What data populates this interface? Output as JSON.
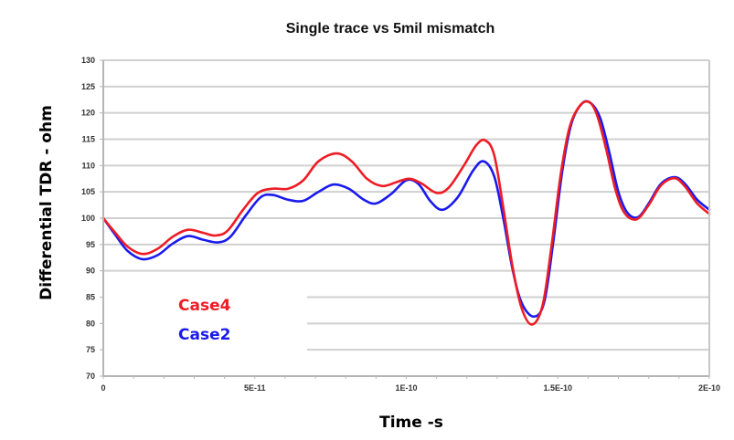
{
  "chart_data": {
    "type": "line",
    "title": "Single trace vs 5mil mismatch",
    "xlabel": "Time -s",
    "ylabel": "Differential TDR - ohm",
    "xlim": [
      0,
      2e-10
    ],
    "ylim": [
      70,
      130
    ],
    "grid": true,
    "legend_placement": "bottom-left",
    "x_ticks": [
      {
        "value": 0,
        "label": "0"
      },
      {
        "value": 5e-11,
        "label": "5E-11"
      },
      {
        "value": 1e-10,
        "label": "1E-10"
      },
      {
        "value": 1.5e-10,
        "label": "1.5E-10"
      },
      {
        "value": 2e-10,
        "label": "2E-10"
      }
    ],
    "x_minor_step": 1e-11,
    "y_ticks": [
      70,
      75,
      80,
      85,
      90,
      95,
      100,
      105,
      110,
      115,
      120,
      125,
      130
    ],
    "series": [
      {
        "name": "Case4",
        "color": "#ee1c24",
        "points": [
          [
            0,
            100
          ],
          [
            4e-12,
            97.2
          ],
          [
            8e-12,
            94.6
          ],
          [
            1.3e-11,
            93.2
          ],
          [
            1.8e-11,
            94.2
          ],
          [
            2.3e-11,
            96.5
          ],
          [
            2.8e-11,
            97.8
          ],
          [
            3.3e-11,
            97.2
          ],
          [
            3.7e-11,
            96.7
          ],
          [
            4.1e-11,
            97.6
          ],
          [
            4.6e-11,
            101.5
          ],
          [
            5.1e-11,
            104.8
          ],
          [
            5.6e-11,
            105.6
          ],
          [
            6.1e-11,
            105.6
          ],
          [
            6.6e-11,
            107.2
          ],
          [
            7.1e-11,
            110.8
          ],
          [
            7.7e-11,
            112.3
          ],
          [
            8.2e-11,
            110.8
          ],
          [
            8.7e-11,
            107.5
          ],
          [
            9.2e-11,
            106.1
          ],
          [
            9.7e-11,
            106.9
          ],
          [
            1.01e-10,
            107.5
          ],
          [
            1.05e-10,
            106.6
          ],
          [
            1.1e-10,
            104.8
          ],
          [
            1.14e-10,
            105.8
          ],
          [
            1.19e-10,
            110.0
          ],
          [
            1.23e-10,
            113.8
          ],
          [
            1.26e-10,
            114.8
          ],
          [
            1.29e-10,
            112.0
          ],
          [
            1.32e-10,
            102.0
          ],
          [
            1.35e-10,
            91.0
          ],
          [
            1.38e-10,
            83.0
          ],
          [
            1.415e-10,
            79.8
          ],
          [
            1.45e-10,
            83.5
          ],
          [
            1.48e-10,
            95.0
          ],
          [
            1.51e-10,
            108.5
          ],
          [
            1.54e-10,
            117.5
          ],
          [
            1.575e-10,
            121.5
          ],
          [
            1.605e-10,
            122.0
          ],
          [
            1.63e-10,
            119.5
          ],
          [
            1.66e-10,
            113.0
          ],
          [
            1.69e-10,
            105.5
          ],
          [
            1.72e-10,
            101.0
          ],
          [
            1.76e-10,
            99.8
          ],
          [
            1.8e-10,
            102.5
          ],
          [
            1.84e-10,
            106.2
          ],
          [
            1.885e-10,
            107.6
          ],
          [
            1.92e-10,
            106.0
          ],
          [
            1.96e-10,
            102.8
          ],
          [
            2e-10,
            100.8
          ]
        ]
      },
      {
        "name": "Case2",
        "color": "#1a1aee",
        "points": [
          [
            0,
            100
          ],
          [
            4e-12,
            96.8
          ],
          [
            8e-12,
            93.8
          ],
          [
            1.3e-11,
            92.2
          ],
          [
            1.8e-11,
            93.0
          ],
          [
            2.3e-11,
            95.2
          ],
          [
            2.8e-11,
            96.6
          ],
          [
            3.3e-11,
            95.9
          ],
          [
            3.8e-11,
            95.4
          ],
          [
            4.2e-11,
            96.5
          ],
          [
            4.7e-11,
            100.5
          ],
          [
            5.2e-11,
            104.0
          ],
          [
            5.6e-11,
            104.4
          ],
          [
            6.1e-11,
            103.5
          ],
          [
            6.6e-11,
            103.3
          ],
          [
            7.1e-11,
            105.0
          ],
          [
            7.6e-11,
            106.4
          ],
          [
            8.1e-11,
            105.6
          ],
          [
            8.6e-11,
            103.5
          ],
          [
            9e-11,
            102.8
          ],
          [
            9.5e-11,
            104.6
          ],
          [
            1e-10,
            107.2
          ],
          [
            1.04e-10,
            106.5
          ],
          [
            1.08e-10,
            103.2
          ],
          [
            1.12e-10,
            101.6
          ],
          [
            1.17e-10,
            104.0
          ],
          [
            1.22e-10,
            109.0
          ],
          [
            1.255e-10,
            110.8
          ],
          [
            1.29e-10,
            108.0
          ],
          [
            1.32e-10,
            100.0
          ],
          [
            1.35e-10,
            90.5
          ],
          [
            1.38e-10,
            84.0
          ],
          [
            1.42e-10,
            81.3
          ],
          [
            1.455e-10,
            84.0
          ],
          [
            1.485e-10,
            95.5
          ],
          [
            1.515e-10,
            109.0
          ],
          [
            1.545e-10,
            118.0
          ],
          [
            1.58e-10,
            121.8
          ],
          [
            1.61e-10,
            121.8
          ],
          [
            1.64e-10,
            119.0
          ],
          [
            1.67e-10,
            112.5
          ],
          [
            1.7e-10,
            105.0
          ],
          [
            1.73e-10,
            101.0
          ],
          [
            1.765e-10,
            100.2
          ],
          [
            1.8e-10,
            102.8
          ],
          [
            1.84e-10,
            106.5
          ],
          [
            1.885e-10,
            107.8
          ],
          [
            1.92e-10,
            106.5
          ],
          [
            1.96e-10,
            103.5
          ],
          [
            2e-10,
            101.6
          ]
        ]
      }
    ]
  }
}
